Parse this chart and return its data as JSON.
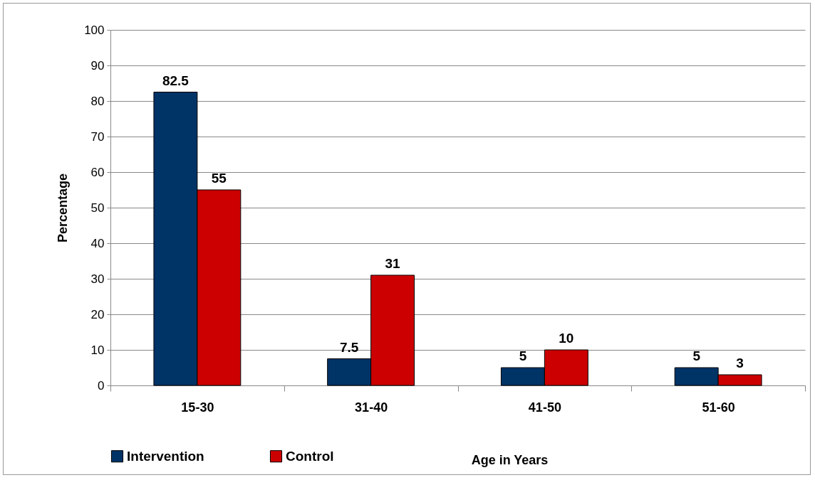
{
  "chart_data": {
    "type": "bar",
    "xlabel": "Age in Years",
    "ylabel": "Percentage",
    "categories": [
      "15-30",
      "31-40",
      "41-50",
      "51-60"
    ],
    "series": [
      {
        "name": "Intervention",
        "color": "#003366",
        "values": [
          82.5,
          7.5,
          5,
          5
        ]
      },
      {
        "name": "Control",
        "color": "#cc0000",
        "values": [
          55,
          31,
          10,
          3
        ]
      }
    ],
    "ylim": [
      0,
      100
    ],
    "yticks": [
      0,
      10,
      20,
      30,
      40,
      50,
      60,
      70,
      80,
      90,
      100
    ],
    "grid": "y",
    "legend": "bottom left",
    "data_labels": true
  }
}
